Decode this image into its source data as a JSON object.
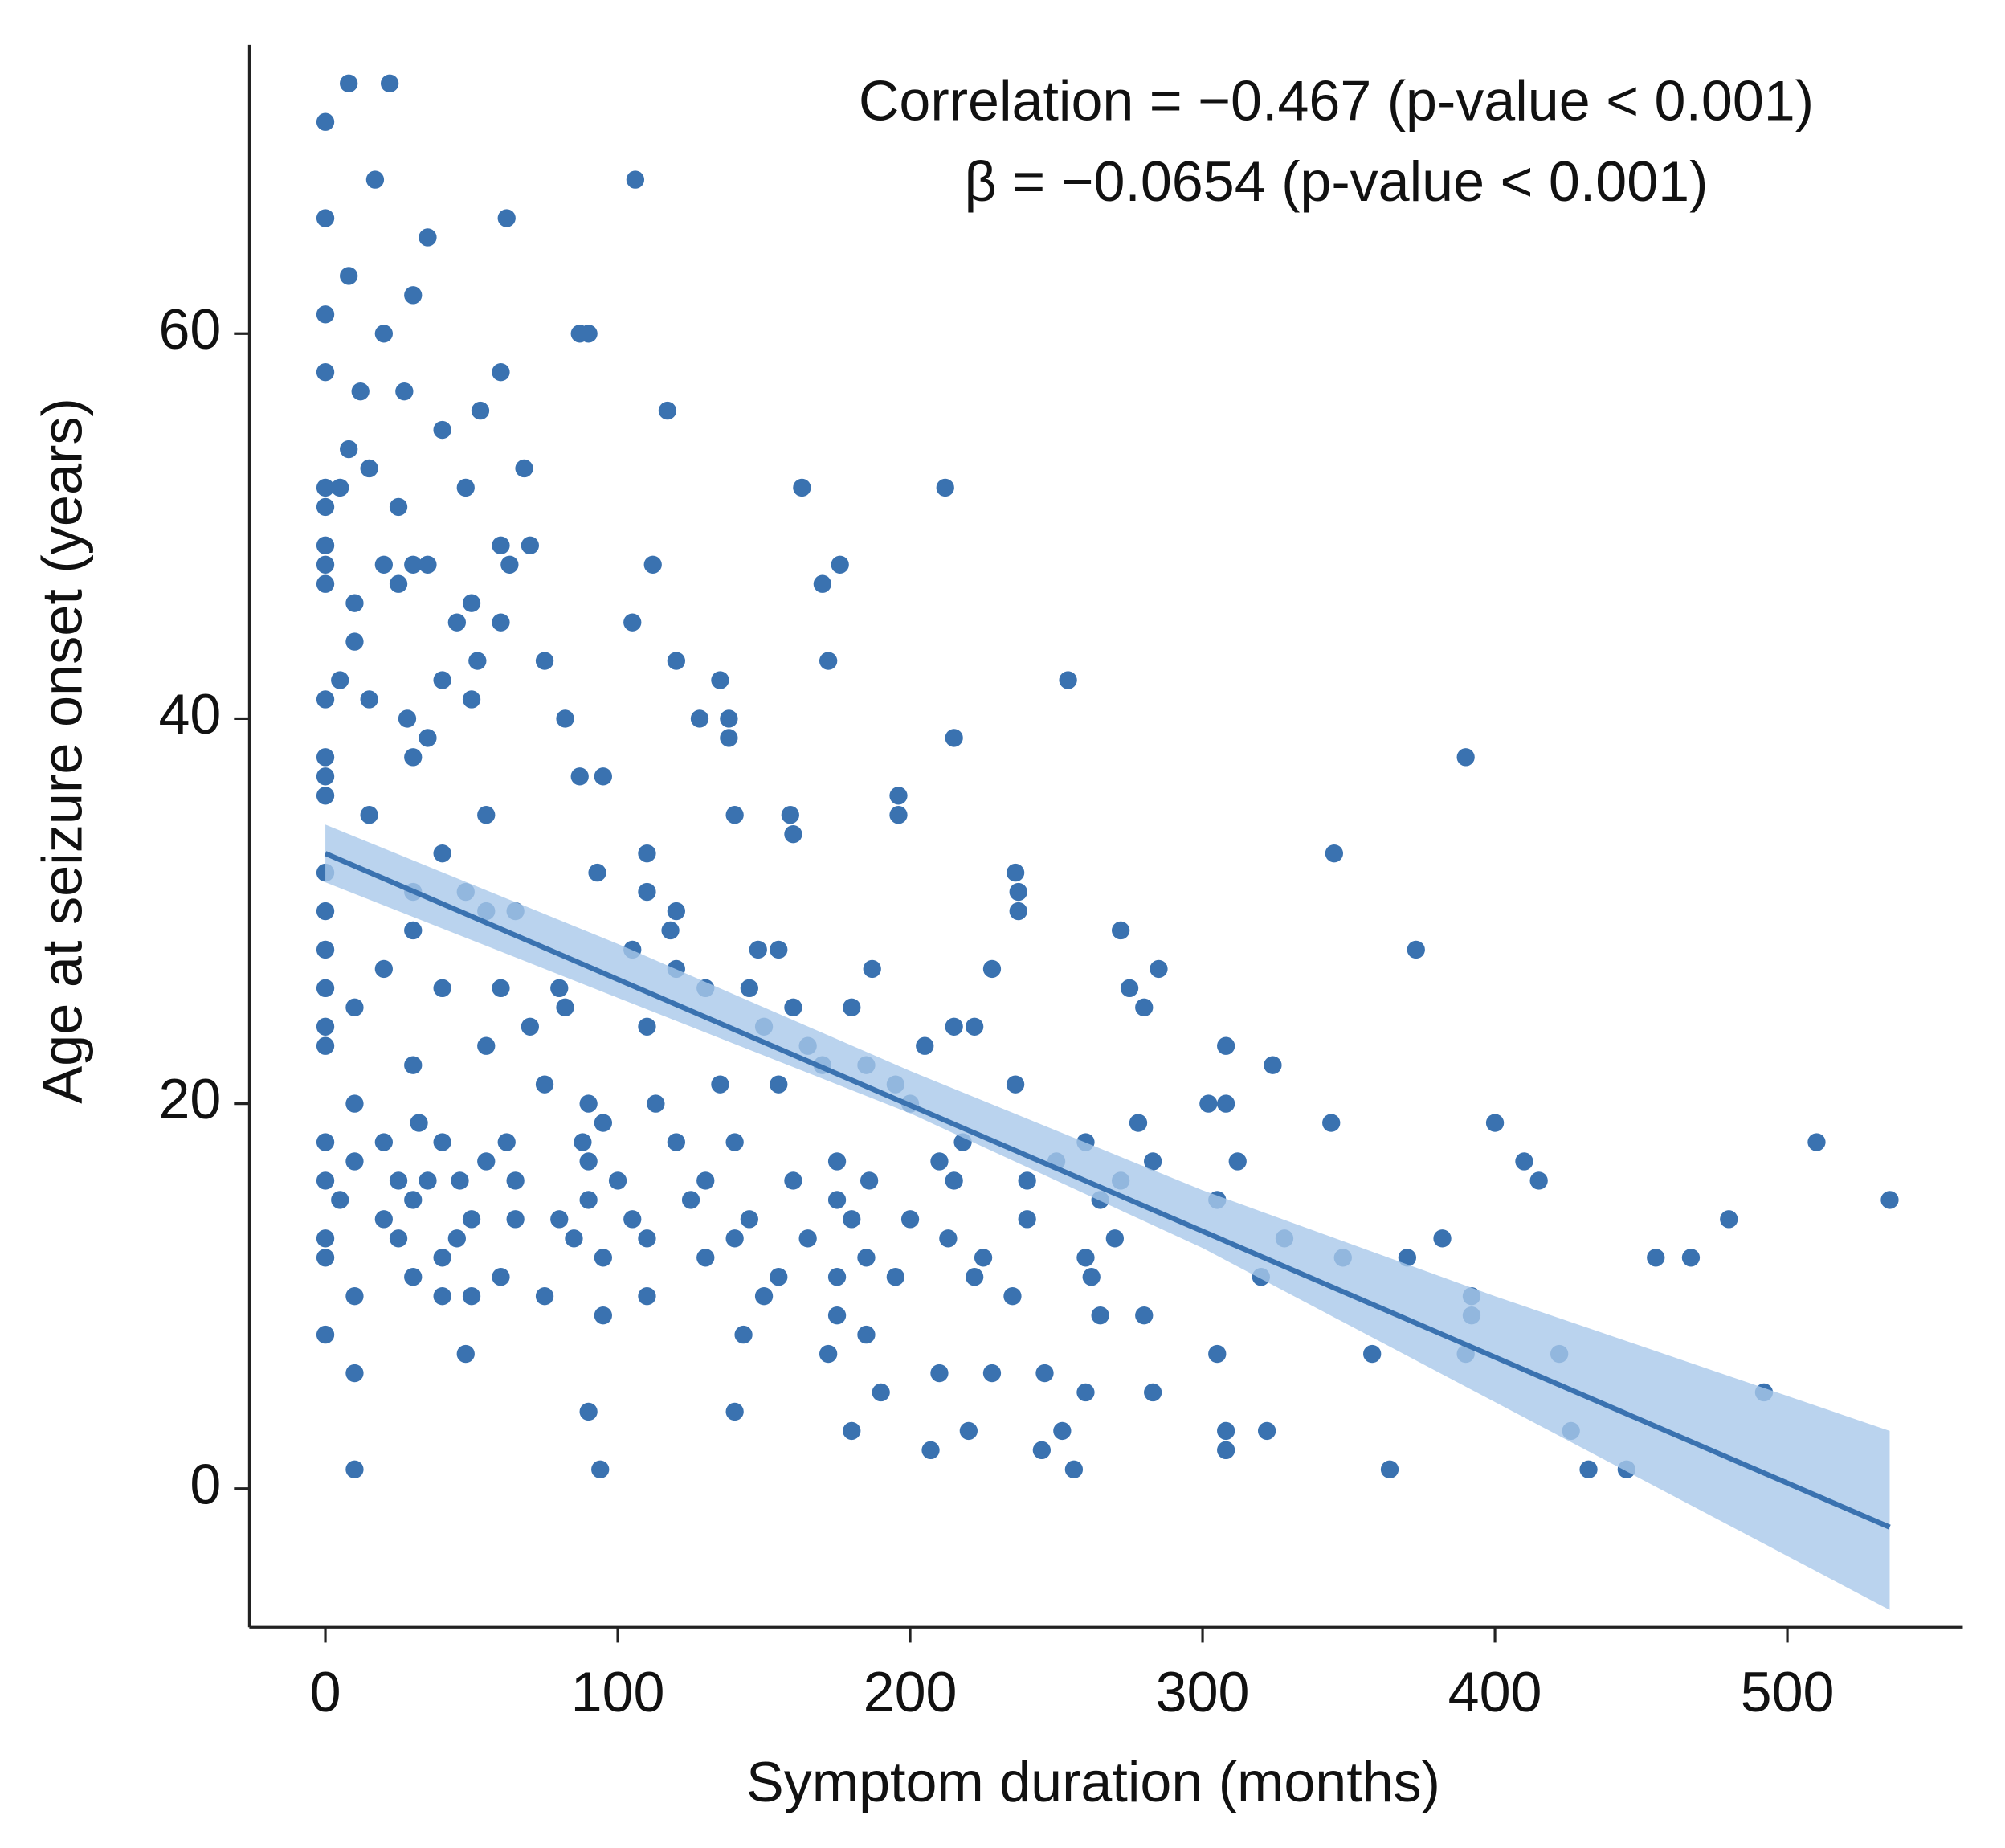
{
  "chart_data": {
    "type": "scatter",
    "xlabel": "Symptom duration (months)",
    "ylabel": "Age at seizure onset (years)",
    "annotations": [
      "Correlation = −0.467 (p-value < 0.001)",
      "β = −0.0654 (p-value < 0.001)"
    ],
    "xlim": [
      -26,
      560
    ],
    "ylim": [
      -7.2,
      75
    ],
    "xticks": [
      0,
      100,
      200,
      300,
      400,
      500
    ],
    "yticks": [
      0,
      20,
      40,
      60
    ],
    "color": "#3a72b0",
    "band_color": "#a9c8ea",
    "x": [
      0,
      8,
      22,
      17,
      106,
      0,
      62,
      35,
      8,
      30,
      0,
      20,
      87,
      90,
      0,
      60,
      12,
      27,
      53,
      117,
      40,
      8,
      15,
      68,
      0,
      5,
      48,
      163,
      212,
      0,
      25,
      0,
      60,
      70,
      0,
      20,
      30,
      35,
      63,
      112,
      176,
      0,
      170,
      25,
      50,
      10,
      105,
      45,
      60,
      10,
      120,
      52,
      75,
      172,
      5,
      40,
      135,
      254,
      0,
      15,
      50,
      82,
      128,
      138,
      28,
      35,
      138,
      215,
      390,
      0,
      30,
      87,
      95,
      0,
      0,
      196,
      15,
      55,
      140,
      159,
      196,
      160,
      345,
      40,
      110,
      0,
      93,
      236,
      30,
      48,
      110,
      237,
      0,
      55,
      65,
      237,
      120,
      30,
      118,
      272,
      0,
      105,
      148,
      155,
      373,
      20,
      120,
      187,
      228,
      285,
      0,
      40,
      60,
      80,
      130,
      145,
      275,
      10,
      82,
      160,
      180,
      280,
      0,
      70,
      110,
      150,
      215,
      222,
      0,
      55,
      165,
      205,
      308,
      30,
      185,
      170,
      324,
      75,
      135,
      155,
      195,
      236,
      10,
      90,
      113,
      200,
      302,
      308,
      32,
      95,
      278,
      344,
      400,
      0,
      20,
      40,
      62,
      88,
      120,
      140,
      218,
      260,
      510,
      10,
      55,
      90,
      175,
      210,
      250,
      283,
      312,
      410,
      0,
      25,
      35,
      46,
      65,
      100,
      130,
      160,
      186,
      215,
      240,
      272,
      415,
      5,
      30,
      90,
      125,
      175,
      265,
      305,
      535,
      20,
      50,
      65,
      80,
      105,
      145,
      180,
      200,
      240,
      480,
      0,
      25,
      45,
      85,
      110,
      140,
      165,
      213,
      270,
      328,
      382,
      0,
      40,
      95,
      130,
      185,
      225,
      260,
      348,
      370,
      455,
      467,
      30,
      60,
      155,
      175,
      195,
      222,
      262,
      320,
      10,
      50,
      75,
      110,
      150,
      235,
      392,
      40,
      95,
      175,
      265,
      280,
      392,
      143,
      185,
      0,
      48,
      172,
      305,
      358,
      390,
      422,
      10,
      210,
      228,
      246,
      190,
      260,
      283,
      492,
      90,
      140,
      180,
      220,
      252,
      308,
      322,
      426,
      207,
      245,
      308,
      10,
      94,
      256,
      364,
      432,
      445
    ],
    "values": [
      71,
      73,
      73,
      68,
      68,
      66,
      66,
      65,
      63,
      62,
      61,
      60,
      60,
      60,
      58,
      58,
      57,
      57,
      56,
      56,
      55,
      54,
      53,
      53,
      52,
      52,
      52,
      52,
      52,
      51,
      51,
      49,
      49,
      49,
      48,
      48,
      48,
      48,
      48,
      48,
      48,
      47,
      47,
      47,
      46,
      46,
      45,
      45,
      45,
      44,
      43,
      43,
      43,
      43,
      42,
      42,
      42,
      42,
      41,
      41,
      41,
      40,
      40,
      40,
      40,
      39,
      39,
      39,
      38,
      38,
      38,
      37,
      37,
      37,
      36,
      36,
      35,
      35,
      35,
      35,
      35,
      34,
      33,
      33,
      33,
      32,
      32,
      32,
      31,
      31,
      31,
      31,
      30,
      30,
      30,
      30,
      30,
      29,
      29,
      29,
      28,
      28,
      28,
      28,
      28,
      27,
      27,
      27,
      27,
      27,
      26,
      26,
      26,
      26,
      26,
      26,
      26,
      25,
      25,
      25,
      25,
      25,
      24,
      24,
      24,
      24,
      24,
      24,
      23,
      23,
      23,
      23,
      23,
      22,
      22,
      22,
      22,
      21,
      21,
      21,
      21,
      21,
      20,
      20,
      20,
      20,
      20,
      20,
      19,
      19,
      19,
      19,
      19,
      18,
      18,
      18,
      18,
      18,
      18,
      18,
      18,
      18,
      18,
      17,
      17,
      17,
      17,
      17,
      17,
      17,
      17,
      17,
      16,
      16,
      16,
      16,
      16,
      16,
      16,
      16,
      16,
      16,
      16,
      16,
      16,
      15,
      15,
      15,
      15,
      15,
      15,
      15,
      15,
      14,
      14,
      14,
      14,
      14,
      14,
      14,
      14,
      14,
      14,
      13,
      13,
      13,
      13,
      13,
      13,
      13,
      13,
      13,
      13,
      13,
      12,
      12,
      12,
      12,
      12,
      12,
      12,
      12,
      12,
      12,
      12,
      11,
      11,
      11,
      11,
      11,
      11,
      11,
      11,
      10,
      10,
      10,
      10,
      10,
      10,
      10,
      10,
      9,
      9,
      9,
      9,
      9,
      8,
      8,
      8,
      7,
      7,
      7,
      7,
      7,
      7,
      6,
      6,
      6,
      6,
      5,
      5,
      5,
      5,
      4,
      4,
      3,
      3,
      3,
      3,
      3,
      3,
      2,
      2,
      2,
      1,
      1,
      1,
      1,
      1,
      1
    ],
    "fit": {
      "x": [
        0,
        535
      ],
      "values": [
        33,
        -2
      ]
    },
    "band": {
      "x": [
        0,
        100,
        200,
        300,
        400,
        535
      ],
      "lower": [
        31.5,
        25.5,
        19.5,
        12.5,
        4.5,
        -6.3
      ],
      "upper": [
        34.5,
        28.3,
        21.7,
        15.5,
        10,
        3
      ]
    }
  }
}
